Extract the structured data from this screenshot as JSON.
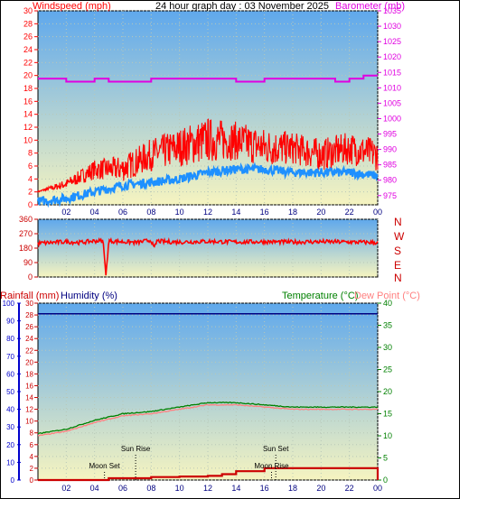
{
  "header": {
    "windspeed_label": "Windspeed (mph)",
    "title": "24 hour graph day : 03 November 2025",
    "barometer_label": "Barometer (mb)"
  },
  "middle": {
    "compass_labels": [
      "N",
      "W",
      "S",
      "E",
      "N"
    ]
  },
  "bottom": {
    "rainfall_label": "Rainfall (mm)",
    "humidity_label": "Humidity (%)",
    "temperature_label": "Temperature (°C)",
    "dewpoint_label": "Dew Point (°C)",
    "annotations": [
      "Sun Rise",
      "Moon Set",
      "Sun Set",
      "Moon Rise"
    ]
  },
  "colors": {
    "windspeed": "#ff0000",
    "wind_avg": "#1e90ff",
    "barometer": "#e000e0",
    "wind_direction": "#ff0000",
    "humidity": "#000080",
    "temperature": "#008000",
    "dewpoint": "#ff8080",
    "rainfall": "#cc0000",
    "sky_top": "#5fa8ec",
    "sky_bottom": "#f6f4c0"
  },
  "chart_data": [
    {
      "type": "line",
      "name": "wind_barometer",
      "x_ticks": [
        "02",
        "04",
        "06",
        "08",
        "10",
        "12",
        "14",
        "16",
        "18",
        "20",
        "22",
        "00"
      ],
      "x_tick_hours": [
        2,
        4,
        6,
        8,
        10,
        12,
        14,
        16,
        18,
        20,
        22,
        24
      ],
      "xlim": [
        0,
        24
      ],
      "y_left": {
        "label": "Windspeed (mph)",
        "lim": [
          0,
          30
        ],
        "ticks": [
          0,
          2,
          4,
          6,
          8,
          10,
          12,
          14,
          16,
          18,
          20,
          22,
          24,
          26,
          28,
          30
        ]
      },
      "y_right": {
        "label": "Barometer (mb)",
        "lim": [
          972,
          1035
        ],
        "ticks": [
          975,
          980,
          985,
          990,
          995,
          1000,
          1005,
          1010,
          1015,
          1020,
          1025,
          1030,
          1035
        ]
      },
      "series": [
        {
          "key": "gust",
          "hours": [
            0,
            2,
            4,
            6,
            8,
            10,
            12,
            14,
            16,
            18,
            20,
            22,
            24
          ],
          "values": [
            2,
            3,
            5,
            5,
            7,
            8,
            9,
            9,
            8,
            8,
            7,
            8,
            7
          ],
          "spread": [
            0.2,
            1.5,
            3,
            4,
            5,
            6,
            7,
            6,
            6,
            5,
            5,
            5,
            5
          ]
        },
        {
          "key": "avg",
          "hours": [
            0,
            2,
            4,
            6,
            8,
            10,
            12,
            14,
            16,
            18,
            20,
            22,
            24
          ],
          "values": [
            0.5,
            1,
            2,
            3,
            3.5,
            4,
            5,
            5.5,
            5.5,
            5,
            5,
            5,
            4.5
          ]
        },
        {
          "key": "barometer",
          "hours": [
            0,
            1.5,
            2,
            3.5,
            4,
            4.5,
            5,
            7.5,
            8,
            13.5,
            14,
            15.5,
            16,
            16.5,
            17,
            20,
            21,
            22,
            22.5,
            23,
            24
          ],
          "values": [
            1013,
            1013,
            1012,
            1012,
            1013,
            1013,
            1012,
            1012,
            1013,
            1013,
            1012,
            1012,
            1013,
            1013,
            1013,
            1013,
            1012,
            1013,
            1013,
            1014,
            1014
          ]
        }
      ]
    },
    {
      "type": "line",
      "name": "wind_direction",
      "y_ticks": [
        0,
        90,
        180,
        270,
        360
      ],
      "ylim": [
        0,
        360
      ],
      "hours": [
        0,
        1,
        2,
        3,
        4,
        4.6,
        4.8,
        5,
        6,
        7,
        8,
        8.2,
        8.4,
        9,
        10,
        12,
        14,
        16,
        18,
        20,
        22,
        24
      ],
      "values": [
        210,
        215,
        220,
        215,
        225,
        225,
        10,
        225,
        220,
        215,
        230,
        175,
        225,
        220,
        218,
        222,
        218,
        220,
        218,
        220,
        218,
        215
      ]
    },
    {
      "type": "line",
      "name": "temperature_humidity",
      "xlim": [
        0,
        24
      ],
      "y_left_outer": {
        "label": "Humidity (%)",
        "lim": [
          0,
          100
        ],
        "ticks": [
          0,
          10,
          20,
          30,
          40,
          50,
          60,
          70,
          80,
          90,
          100
        ]
      },
      "y_left_inner": {
        "label": "Rainfall (mm)",
        "lim": [
          0,
          30
        ],
        "ticks": [
          0,
          2,
          4,
          6,
          8,
          10,
          12,
          14,
          16,
          18,
          20,
          22,
          24,
          26,
          28,
          30
        ]
      },
      "y_right": {
        "label": "Temperature (°C)",
        "lim": [
          0,
          40
        ],
        "ticks": [
          0,
          5,
          10,
          15,
          20,
          25,
          30,
          35,
          40
        ]
      },
      "series": [
        {
          "key": "humidity",
          "hours": [
            0,
            24
          ],
          "values": [
            94,
            94
          ]
        },
        {
          "key": "temperature",
          "hours": [
            0,
            2,
            4,
            6,
            8,
            10,
            12,
            13,
            14,
            16,
            18,
            20,
            22,
            24
          ],
          "values": [
            10.5,
            11.5,
            13.5,
            15,
            15.5,
            16.5,
            17.5,
            17.5,
            17.5,
            17,
            16.5,
            16.5,
            16.5,
            16.5
          ]
        },
        {
          "key": "dewpoint",
          "hours": [
            0,
            2,
            4,
            6,
            8,
            10,
            12,
            13,
            14,
            16,
            18,
            20,
            22,
            24
          ],
          "values": [
            10,
            11,
            13,
            14.5,
            15,
            16,
            17,
            17,
            17,
            16.5,
            16,
            16,
            16,
            16
          ]
        },
        {
          "key": "rainfall",
          "hours": [
            0,
            4,
            5,
            7,
            8,
            10,
            12,
            13,
            14,
            16,
            18,
            20,
            22,
            23.9,
            24
          ],
          "values": [
            0,
            0,
            0.3,
            0.3,
            0.5,
            0.6,
            0.7,
            1,
            1.5,
            2,
            2,
            2,
            2,
            2,
            0
          ]
        }
      ],
      "events": [
        {
          "label": "Sun Rise",
          "hour": 6.9
        },
        {
          "label": "Moon Set",
          "hour": 4.7
        },
        {
          "label": "Sun Set",
          "hour": 16.8
        },
        {
          "label": "Moon Rise",
          "hour": 16.5
        }
      ]
    }
  ]
}
